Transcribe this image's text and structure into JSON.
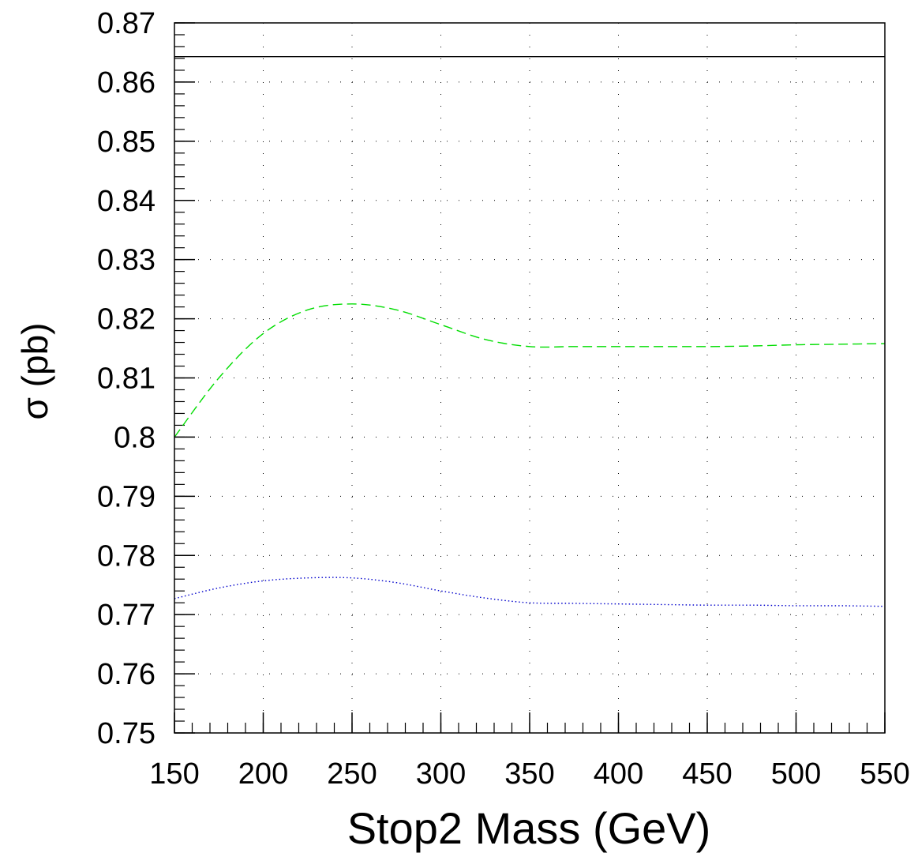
{
  "chart_data": {
    "type": "line",
    "title": "",
    "xlabel": "Stop2 Mass (GeV)",
    "ylabel": "σ (pb)",
    "xlim": [
      150,
      550
    ],
    "ylim": [
      0.75,
      0.87
    ],
    "x_ticks": [
      150,
      200,
      250,
      300,
      350,
      400,
      450,
      500,
      550
    ],
    "x_tick_labels": [
      "150",
      "200",
      "250",
      "300",
      "350",
      "400",
      "450",
      "500",
      "550"
    ],
    "y_ticks": [
      0.75,
      0.76,
      0.77,
      0.78,
      0.79,
      0.8,
      0.81,
      0.82,
      0.83,
      0.84,
      0.85,
      0.86,
      0.87
    ],
    "y_tick_labels": [
      "0.75",
      "0.76",
      "0.77",
      "0.78",
      "0.79",
      "0.8",
      "0.81",
      "0.82",
      "0.83",
      "0.84",
      "0.85",
      "0.86",
      "0.87"
    ],
    "grid": true,
    "legend": "none",
    "series": [
      {
        "style": "solid",
        "color": "#000000",
        "x": [
          150,
          550
        ],
        "y": [
          0.8643,
          0.8643
        ]
      },
      {
        "style": "dashed",
        "color": "#00dd00",
        "x": [
          150,
          175,
          200,
          225,
          250,
          275,
          300,
          325,
          350,
          375,
          400,
          425,
          450,
          475,
          500,
          525,
          550
        ],
        "y": [
          0.8,
          0.81,
          0.8175,
          0.8215,
          0.8225,
          0.8215,
          0.819,
          0.8165,
          0.8153,
          0.8153,
          0.8153,
          0.8153,
          0.8153,
          0.8154,
          0.8156,
          0.8157,
          0.8158
        ]
      },
      {
        "style": "dotted",
        "color": "#0000cc",
        "x": [
          150,
          175,
          200,
          225,
          250,
          275,
          300,
          325,
          350,
          375,
          400,
          425,
          450,
          475,
          500,
          525,
          550
        ],
        "y": [
          0.7727,
          0.7745,
          0.7757,
          0.7762,
          0.7762,
          0.7754,
          0.774,
          0.7728,
          0.772,
          0.7719,
          0.7718,
          0.7717,
          0.7716,
          0.7716,
          0.7715,
          0.7715,
          0.7714
        ]
      }
    ]
  }
}
